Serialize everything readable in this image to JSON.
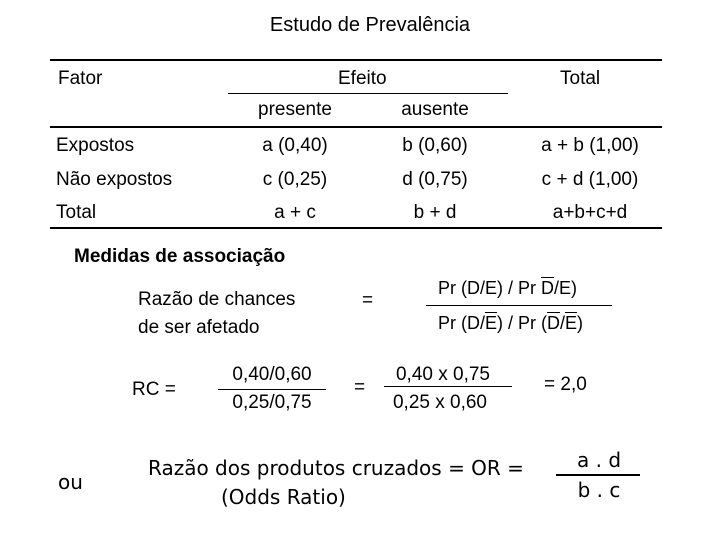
{
  "title": "Estudo de Prevalência",
  "table": {
    "col_fator": "Fator",
    "col_efeito": "Efeito",
    "col_total": "Total",
    "sub_presente": "presente",
    "sub_ausente": "ausente",
    "rows": [
      {
        "label": "Expostos",
        "presente": "a (0,40)",
        "ausente": "b (0,60)",
        "total": "a + b (1,00)"
      },
      {
        "label": "Não expostos",
        "presente": "c (0,25)",
        "ausente": "d (0,75)",
        "total": "c + d (1,00)"
      },
      {
        "label": "Total",
        "presente": "a + c",
        "ausente": "b + d",
        "total": "a+b+c+d"
      }
    ]
  },
  "measures": {
    "heading": "Medidas de associação",
    "odds_label_line1": "Razão de chances",
    "odds_label_line2": "de ser afetado",
    "equals": "=",
    "ratio_num_pre": "Pr (D/E) / Pr ",
    "ratio_num_d": "D",
    "ratio_num_post": "/E)",
    "ratio_den_pre": "Pr (D/",
    "ratio_den_e": "E",
    "ratio_den_mid": ") / Pr (",
    "ratio_den_d": "D",
    "ratio_den_slash": "/",
    "ratio_den_e2": "E",
    "ratio_den_post": ")",
    "rc_label": "RC  =",
    "rc_num": "0,40/0,60",
    "rc_den": "0,25/0,75",
    "calc_num": "0,40 x 0,75",
    "calc_den": "0,25 x 0,60",
    "result": "=  2,0",
    "ou": "ou",
    "cross_line1": "Razão dos produtos cruzados = OR =",
    "cross_line2": "(Odds Ratio)",
    "cross_num": "a . d",
    "cross_den": "b . c"
  }
}
